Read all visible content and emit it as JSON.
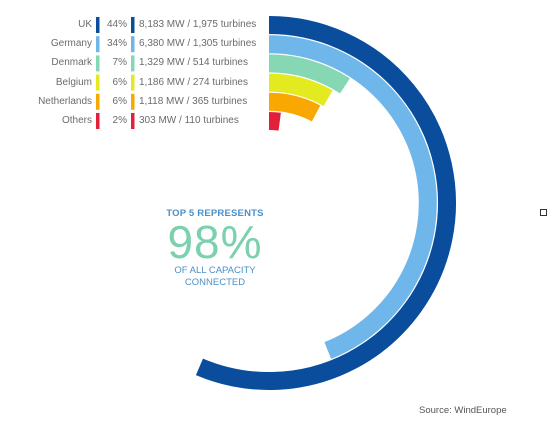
{
  "chart_data": {
    "type": "radial-bar",
    "unit": "MW",
    "series": [
      {
        "country": "UK",
        "share": "44%",
        "share_value": 44,
        "mw": 8183,
        "turbines": 1975,
        "detail": "8,183 MW / 1,975 turbines",
        "color": "#0a4d9c"
      },
      {
        "country": "Germany",
        "share": "34%",
        "share_value": 34,
        "mw": 6380,
        "turbines": 1305,
        "detail": "6,380 MW / 1,305 turbines",
        "color": "#6fb6ea"
      },
      {
        "country": "Denmark",
        "share": "7%",
        "share_value": 7,
        "mw": 1329,
        "turbines": 514,
        "detail": "1,329 MW / 514 turbines",
        "color": "#86d8b5"
      },
      {
        "country": "Belgium",
        "share": "6%",
        "share_value": 6,
        "mw": 1186,
        "turbines": 274,
        "detail": "1,186 MW / 274 turbines",
        "color": "#e3ea1f"
      },
      {
        "country": "Netherlands",
        "share": "6%",
        "share_value": 6,
        "mw": 1118,
        "turbines": 365,
        "detail": "1,118 MW / 365 turbines",
        "color": "#f8a800"
      },
      {
        "country": "Others",
        "share": "2%",
        "share_value": 2,
        "mw": 303,
        "turbines": 110,
        "detail": "303 MW / 110 turbines",
        "color": "#e2203a"
      }
    ],
    "max_mw": 8183
  },
  "center": {
    "pre": "TOP 5 REPRESENTS",
    "big": "98%",
    "post_line1": "OF ALL CAPACITY",
    "post_line2": "CONNECTED"
  },
  "source": "Source: WindEurope"
}
